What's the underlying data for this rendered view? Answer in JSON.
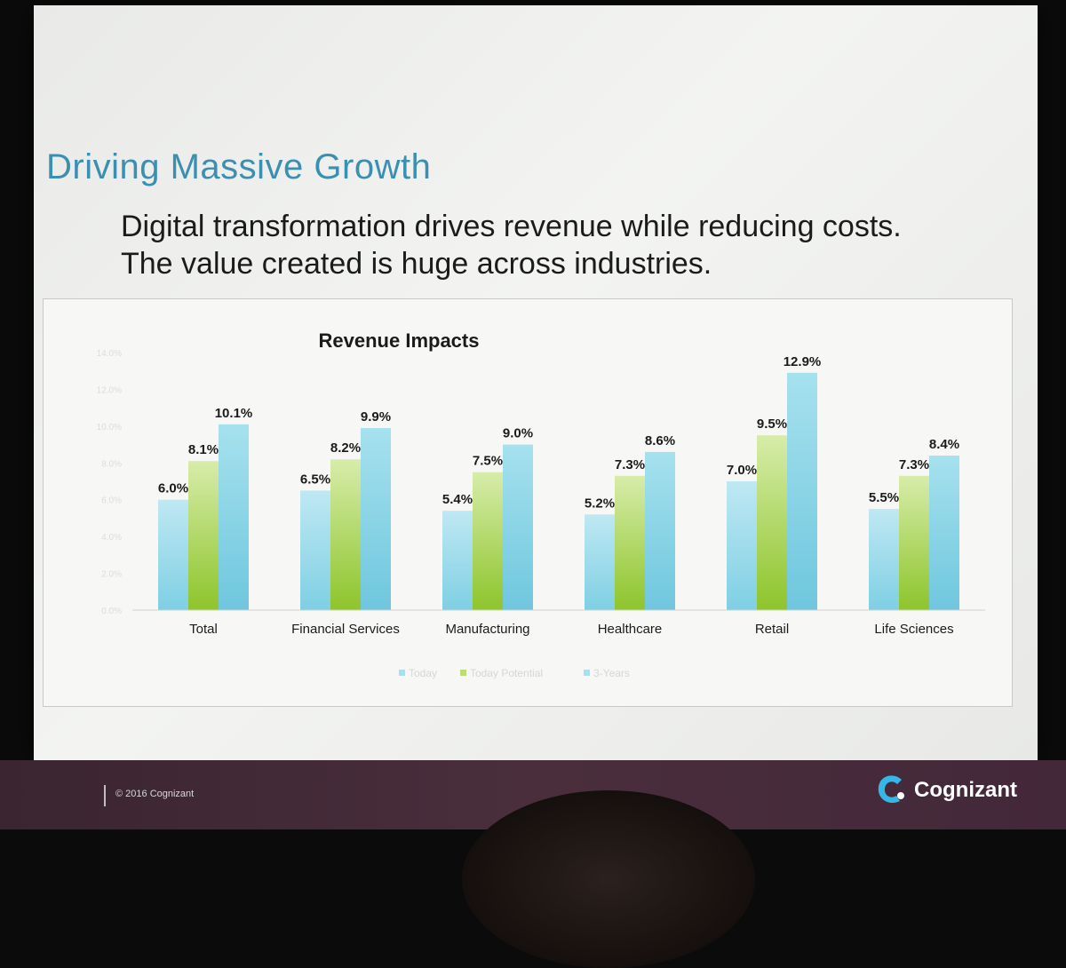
{
  "slide": {
    "title": "Driving Massive Growth",
    "subtitle": "Digital transformation drives revenue while reducing costs. The value created is huge across industries."
  },
  "footer": {
    "copyright": "© 2016 Cognizant",
    "brand_name": "Cognizant",
    "brand_icon": "cognizant-logo-icon"
  },
  "colors": {
    "title": "#3b8fb0",
    "today": "#8fd3e8",
    "today_potential": "#9bcf3e",
    "three_years": "#7fd0e3",
    "footer": "#43283a"
  },
  "chart_data": {
    "type": "bar",
    "title": "Revenue Impacts",
    "categories": [
      "Total",
      "Financial Services",
      "Manufacturing",
      "Healthcare",
      "Retail",
      "Life Sciences"
    ],
    "series": [
      {
        "name": "Today",
        "values": [
          6.0,
          6.5,
          5.4,
          5.2,
          7.0,
          5.5
        ],
        "labels": [
          "6.0%",
          "6.5%",
          "5.4%",
          "5.2%",
          "7.0%",
          "5.5%"
        ]
      },
      {
        "name": "Today Potential",
        "values": [
          8.1,
          8.2,
          7.5,
          7.3,
          9.5,
          7.3
        ],
        "labels": [
          "8.1%",
          "8.2%",
          "7.5%",
          "7.3%",
          "9.5%",
          "7.3%"
        ]
      },
      {
        "name": "3-Years",
        "values": [
          10.1,
          9.9,
          9.0,
          8.6,
          12.9,
          8.4
        ],
        "labels": [
          "10.1%",
          "9.9%",
          "9.0%",
          "8.6%",
          "12.9%",
          "8.4%"
        ]
      }
    ],
    "ylim": [
      0,
      14
    ],
    "legend_position": "bottom",
    "grid": false
  }
}
